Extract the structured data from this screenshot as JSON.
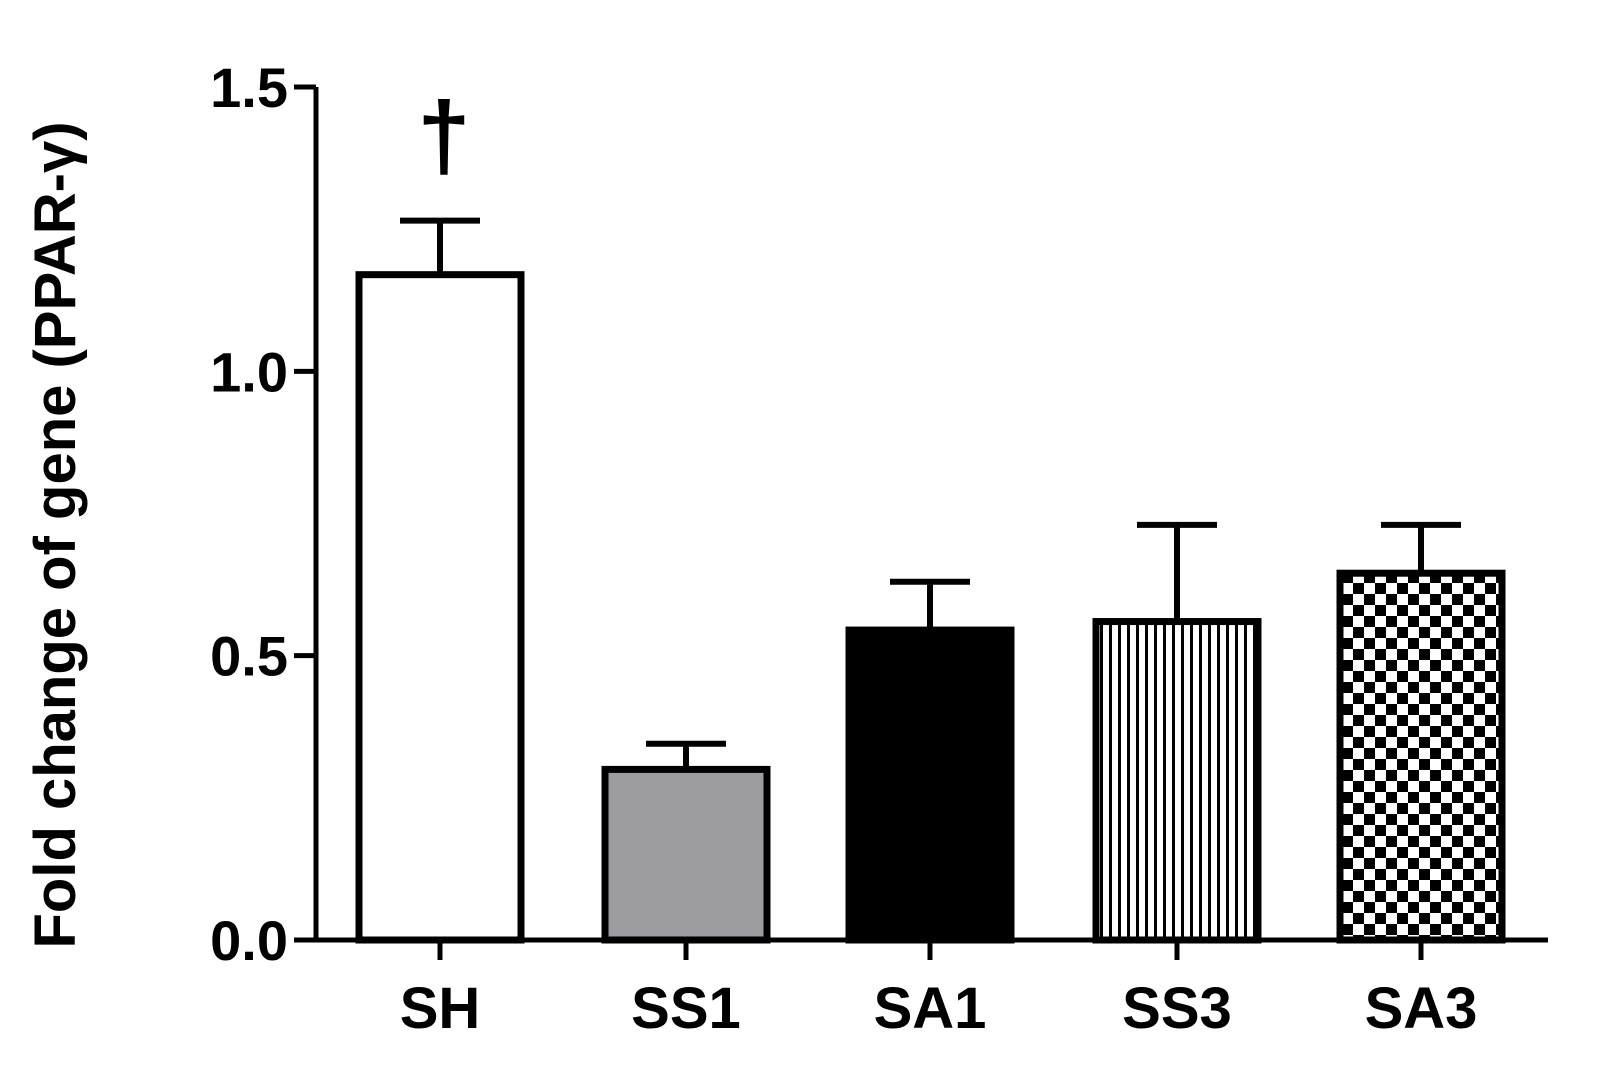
{
  "chart_data": {
    "type": "bar",
    "title": "",
    "xlabel": "",
    "ylabel": "Fold change of gene (PPAR-γ)",
    "ylim": [
      0,
      1.5
    ],
    "yticks": [
      0.0,
      0.5,
      1.0,
      1.5
    ],
    "ytick_labels": [
      "0.0",
      "0.5",
      "1.0",
      "1.5"
    ],
    "grid": false,
    "categories": [
      "SH",
      "SS1",
      "SA1",
      "SS3",
      "SA3"
    ],
    "values": [
      1.17,
      0.3,
      0.545,
      0.56,
      0.645
    ],
    "error_upper": [
      1.265,
      0.345,
      0.63,
      0.73,
      0.73
    ],
    "fills": [
      "white",
      "gray",
      "black",
      "vertical-stripes",
      "checkerboard"
    ],
    "annotations": [
      {
        "category": "SH",
        "text": "†"
      }
    ],
    "colors": {
      "gray": "#9d9da1",
      "black": "#000000",
      "white": "#ffffff"
    }
  }
}
